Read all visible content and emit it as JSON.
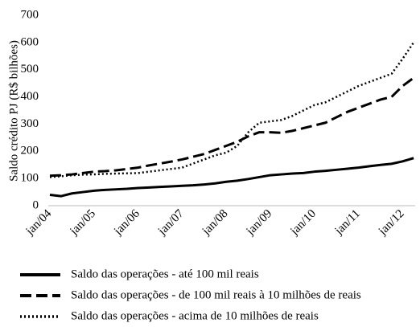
{
  "chart_data": {
    "type": "line",
    "y_label": "Saldo crédito PJ (R$ bilhões)",
    "categories": [
      "jan/04",
      null,
      null,
      null,
      "jan/05",
      null,
      null,
      null,
      "jan/06",
      null,
      null,
      null,
      "jan/07",
      null,
      null,
      null,
      "jan/08",
      null,
      null,
      null,
      "jan/09",
      null,
      null,
      null,
      "jan/10",
      null,
      null,
      null,
      "jan/11",
      null,
      null,
      null,
      "jan/12",
      null
    ],
    "series": [
      {
        "name": "Saldo das operações - até 100 mil reais",
        "color": "#000000",
        "dash": "solid",
        "values": [
          40,
          35,
          45,
          50,
          55,
          58,
          60,
          62,
          65,
          67,
          69,
          71,
          73,
          75,
          78,
          82,
          88,
          92,
          98,
          105,
          112,
          115,
          118,
          120,
          125,
          128,
          132,
          136,
          140,
          145,
          150,
          154,
          163,
          175
        ]
      },
      {
        "name": "Saldo das operações - de 100 mil reais à 10 milhões de reais",
        "color": "#000000",
        "dash": "dashed",
        "values": [
          110,
          112,
          115,
          120,
          125,
          127,
          130,
          135,
          140,
          148,
          155,
          162,
          170,
          180,
          190,
          205,
          220,
          235,
          255,
          270,
          270,
          268,
          275,
          285,
          295,
          305,
          325,
          345,
          360,
          375,
          390,
          400,
          440,
          470
        ]
      },
      {
        "name": "Saldo das operações - acima de 10 milhões de reais",
        "color": "#000000",
        "dash": "dotted",
        "values": [
          105,
          108,
          112,
          114,
          115,
          117,
          118,
          119,
          120,
          125,
          130,
          135,
          140,
          155,
          170,
          185,
          195,
          220,
          270,
          305,
          310,
          315,
          330,
          350,
          370,
          380,
          400,
          420,
          440,
          455,
          470,
          485,
          540,
          600
        ]
      }
    ],
    "ylim": [
      0,
      700
    ],
    "yticks": [
      0,
      100,
      200,
      300,
      400,
      500,
      600,
      700
    ],
    "grid": false
  }
}
